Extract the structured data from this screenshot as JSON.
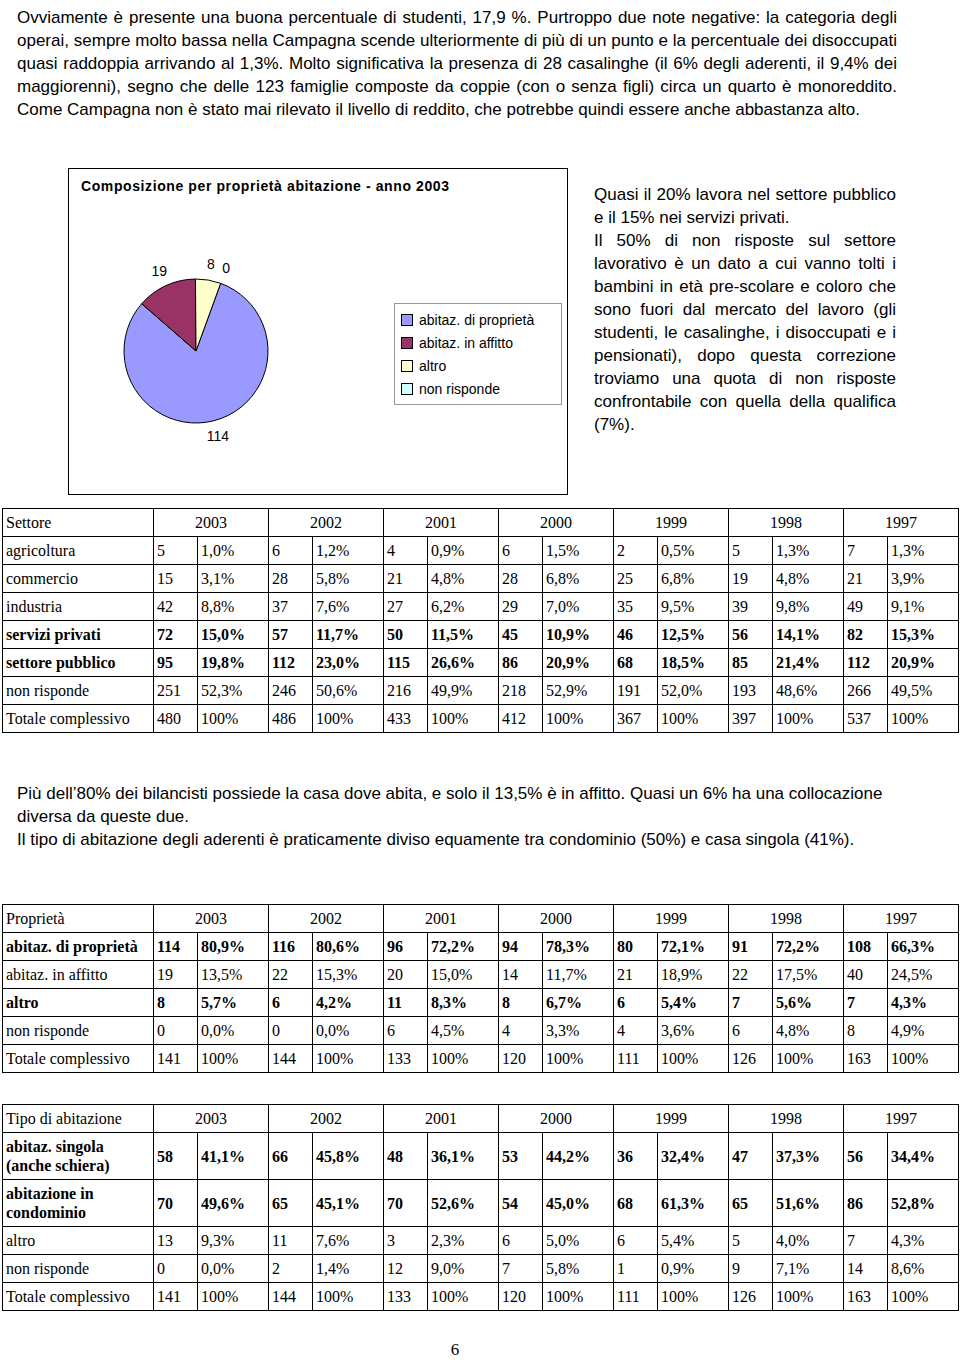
{
  "intro": "Ovviamente è presente una buona percentuale di studenti, 17,9 %. Purtroppo due note negative: la categoria degli operai, sempre molto bassa nella Campagna scende ulteriormente di più di un punto e la percentuale dei disoccupati quasi raddoppia arrivando al 1,3%. Molto significativa la presenza di 28 casalinghe (il 6% degli aderenti, il 9,4% dei maggiorenni), segno che delle 123 famiglie composte da coppie (con o senza figli) circa un quarto è monoreddito. Come Campagna non è stato mai rilevato il livello di reddito, che potrebbe quindi essere anche abbastanza alto.",
  "chart_data": {
    "type": "pie",
    "title": "Composizione per proprietà abitazione - anno 2003",
    "categories": [
      "abitaz. di proprietà",
      "abitaz. in affitto",
      "altro",
      "non risponde"
    ],
    "values": [
      114,
      19,
      8,
      0
    ],
    "colors": [
      "#9999ff",
      "#993366",
      "#ffffcc",
      "#ccffff"
    ],
    "data_labels": true,
    "legend": "right"
  },
  "side_note": [
    "Quasi il 20% lavora nel settore pubblico e il 15% nei servizi privati.",
    "Il 50% di non risposte sul settore lavorativo è un dato a cui vanno tolti i bambini in età pre-scolare e coloro che sono fuori dal mercato del lavoro (gli studenti, le casalinghe, i disoccupati e i pensionati), dopo questa correzione troviamo una quota di non risposte confrontabile con quella della qualifica (7%)."
  ],
  "tables": [
    {
      "columns": [
        "Settore",
        "2003",
        "2002",
        "2001",
        "2000",
        "1999",
        "1998",
        "1997"
      ],
      "rows": [
        {
          "label": "agricoltura",
          "bold": false,
          "cells": [
            [
              5,
              "1,0%"
            ],
            [
              6,
              "1,2%"
            ],
            [
              4,
              "0,9%"
            ],
            [
              6,
              "1,5%"
            ],
            [
              2,
              "0,5%"
            ],
            [
              5,
              "1,3%"
            ],
            [
              7,
              "1,3%"
            ]
          ]
        },
        {
          "label": "commercio",
          "bold": false,
          "cells": [
            [
              15,
              "3,1%"
            ],
            [
              28,
              "5,8%"
            ],
            [
              21,
              "4,8%"
            ],
            [
              28,
              "6,8%"
            ],
            [
              25,
              "6,8%"
            ],
            [
              19,
              "4,8%"
            ],
            [
              21,
              "3,9%"
            ]
          ]
        },
        {
          "label": "industria",
          "bold": false,
          "cells": [
            [
              42,
              "8,8%"
            ],
            [
              37,
              "7,6%"
            ],
            [
              27,
              "6,2%"
            ],
            [
              29,
              "7,0%"
            ],
            [
              35,
              "9,5%"
            ],
            [
              39,
              "9,8%"
            ],
            [
              49,
              "9,1%"
            ]
          ]
        },
        {
          "label": "servizi privati",
          "bold": true,
          "cells": [
            [
              72,
              "15,0%"
            ],
            [
              57,
              "11,7%"
            ],
            [
              50,
              "11,5%"
            ],
            [
              45,
              "10,9%"
            ],
            [
              46,
              "12,5%"
            ],
            [
              56,
              "14,1%"
            ],
            [
              82,
              "15,3%"
            ]
          ]
        },
        {
          "label": "settore pubblico",
          "bold": true,
          "cells": [
            [
              95,
              "19,8%"
            ],
            [
              112,
              "23,0%"
            ],
            [
              115,
              "26,6%"
            ],
            [
              86,
              "20,9%"
            ],
            [
              68,
              "18,5%"
            ],
            [
              85,
              "21,4%"
            ],
            [
              112,
              "20,9%"
            ]
          ]
        },
        {
          "label": "non risponde",
          "bold": false,
          "cells": [
            [
              251,
              "52,3%"
            ],
            [
              246,
              "50,6%"
            ],
            [
              216,
              "49,9%"
            ],
            [
              218,
              "52,9%"
            ],
            [
              191,
              "52,0%"
            ],
            [
              193,
              "48,6%"
            ],
            [
              266,
              "49,5%"
            ]
          ]
        },
        {
          "label": "Totale complessivo",
          "bold": false,
          "cells": [
            [
              480,
              "100%"
            ],
            [
              486,
              "100%"
            ],
            [
              433,
              "100%"
            ],
            [
              412,
              "100%"
            ],
            [
              367,
              "100%"
            ],
            [
              397,
              "100%"
            ],
            [
              537,
              "100%"
            ]
          ]
        }
      ]
    },
    {
      "columns": [
        "Proprietà",
        "2003",
        "2002",
        "2001",
        "2000",
        "1999",
        "1998",
        "1997"
      ],
      "rows": [
        {
          "label": "abitaz. di proprietà",
          "bold": true,
          "cells": [
            [
              114,
              "80,9%"
            ],
            [
              116,
              "80,6%"
            ],
            [
              96,
              "72,2%"
            ],
            [
              94,
              "78,3%"
            ],
            [
              80,
              "72,1%"
            ],
            [
              91,
              "72,2%"
            ],
            [
              108,
              "66,3%"
            ]
          ]
        },
        {
          "label": "abitaz. in affitto",
          "bold": false,
          "cells": [
            [
              19,
              "13,5%"
            ],
            [
              22,
              "15,3%"
            ],
            [
              20,
              "15,0%"
            ],
            [
              14,
              "11,7%"
            ],
            [
              21,
              "18,9%"
            ],
            [
              22,
              "17,5%"
            ],
            [
              40,
              "24,5%"
            ]
          ]
        },
        {
          "label": "altro",
          "bold": true,
          "cells": [
            [
              8,
              "5,7%"
            ],
            [
              6,
              "4,2%"
            ],
            [
              11,
              "8,3%"
            ],
            [
              8,
              "6,7%"
            ],
            [
              6,
              "5,4%"
            ],
            [
              7,
              "5,6%"
            ],
            [
              7,
              "4,3%"
            ]
          ]
        },
        {
          "label": "non risponde",
          "bold": false,
          "cells": [
            [
              0,
              "0,0%"
            ],
            [
              0,
              "0,0%"
            ],
            [
              6,
              "4,5%"
            ],
            [
              4,
              "3,3%"
            ],
            [
              4,
              "3,6%"
            ],
            [
              6,
              "4,8%"
            ],
            [
              8,
              "4,9%"
            ]
          ]
        },
        {
          "label": "Totale complessivo",
          "bold": false,
          "cells": [
            [
              141,
              "100%"
            ],
            [
              144,
              "100%"
            ],
            [
              133,
              "100%"
            ],
            [
              120,
              "100%"
            ],
            [
              111,
              "100%"
            ],
            [
              126,
              "100%"
            ],
            [
              163,
              "100%"
            ]
          ]
        }
      ]
    },
    {
      "columns": [
        "Tipo di abitazione",
        "2003",
        "2002",
        "2001",
        "2000",
        "1999",
        "1998",
        "1997"
      ],
      "rows": [
        {
          "label": "abitaz. singola (anche schiera)",
          "bold": true,
          "cells": [
            [
              58,
              "41,1%"
            ],
            [
              66,
              "45,8%"
            ],
            [
              48,
              "36,1%"
            ],
            [
              53,
              "44,2%"
            ],
            [
              36,
              "32,4%"
            ],
            [
              47,
              "37,3%"
            ],
            [
              56,
              "34,4%"
            ]
          ]
        },
        {
          "label": "abitazione in condominio",
          "bold": true,
          "cells": [
            [
              70,
              "49,6%"
            ],
            [
              65,
              "45,1%"
            ],
            [
              70,
              "52,6%"
            ],
            [
              54,
              "45,0%"
            ],
            [
              68,
              "61,3%"
            ],
            [
              65,
              "51,6%"
            ],
            [
              86,
              "52,8%"
            ]
          ]
        },
        {
          "label": "altro",
          "bold": false,
          "cells": [
            [
              13,
              "9,3%"
            ],
            [
              11,
              "7,6%"
            ],
            [
              3,
              "2,3%"
            ],
            [
              6,
              "5,0%"
            ],
            [
              6,
              "5,4%"
            ],
            [
              5,
              "4,0%"
            ],
            [
              7,
              "4,3%"
            ]
          ]
        },
        {
          "label": "non risponde",
          "bold": false,
          "cells": [
            [
              0,
              "0,0%"
            ],
            [
              2,
              "1,4%"
            ],
            [
              12,
              "9,0%"
            ],
            [
              7,
              "5,8%"
            ],
            [
              1,
              "0,9%"
            ],
            [
              9,
              "7,1%"
            ],
            [
              14,
              "8,6%"
            ]
          ]
        },
        {
          "label": "Totale complessivo",
          "bold": false,
          "cells": [
            [
              141,
              "100%"
            ],
            [
              144,
              "100%"
            ],
            [
              133,
              "100%"
            ],
            [
              120,
              "100%"
            ],
            [
              111,
              "100%"
            ],
            [
              126,
              "100%"
            ],
            [
              163,
              "100%"
            ]
          ]
        }
      ]
    }
  ],
  "middle_text": [
    "Più dell’80% dei bilancisti possiede la casa dove abita, e solo il 13,5% è in affitto. Quasi un 6% ha una collocazione diversa da queste due.",
    "Il tipo di abitazione degli aderenti è praticamente diviso equamente tra condominio (50%) e casa singola (41%)."
  ],
  "page_number": "6"
}
